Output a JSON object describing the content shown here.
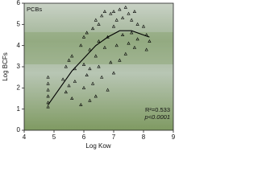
{
  "chart_data": {
    "type": "scatter",
    "xlabel": "Log Kow",
    "ylabel": "Log BCFs",
    "xlim": [
      4,
      9
    ],
    "xticks": [
      4,
      5,
      6,
      7,
      8,
      9
    ],
    "ylim": [
      0,
      6
    ],
    "yticks": [
      0,
      1,
      2,
      3,
      4,
      5,
      6
    ],
    "annotations": [
      "PCBs",
      "R²=0.533",
      "p<0.0001"
    ],
    "color": "#000000",
    "points": {
      "x": [
        4.8,
        4.8,
        4.8,
        4.8,
        4.8,
        4.8,
        5.3,
        5.4,
        5.4,
        5.5,
        5.5,
        5.6,
        5.6,
        5.7,
        5.7,
        5.9,
        5.9,
        6.0,
        6.0,
        6.0,
        6.1,
        6.1,
        6.2,
        6.2,
        6.2,
        6.3,
        6.3,
        6.4,
        6.4,
        6.4,
        6.5,
        6.5,
        6.5,
        6.6,
        6.6,
        6.7,
        6.7,
        6.8,
        6.8,
        6.9,
        6.9,
        7.0,
        7.0,
        7.0,
        7.1,
        7.1,
        7.2,
        7.2,
        7.3,
        7.3,
        7.4,
        7.4,
        7.5,
        7.5,
        7.6,
        7.6,
        7.7,
        7.7,
        7.8,
        7.8,
        8.0,
        8.1,
        8.1,
        8.2
      ],
      "values": [
        1.3,
        1.6,
        1.9,
        2.2,
        2.5,
        1.1,
        2.4,
        3.0,
        1.8,
        3.3,
        2.1,
        3.5,
        1.5,
        2.9,
        2.3,
        4.0,
        1.2,
        4.4,
        3.1,
        2.0,
        4.6,
        2.6,
        3.8,
        1.4,
        2.9,
        4.8,
        2.2,
        5.2,
        3.5,
        1.6,
        5.0,
        3.0,
        4.2,
        5.4,
        2.5,
        5.6,
        3.9,
        4.4,
        1.9,
        5.5,
        3.2,
        5.6,
        4.9,
        2.7,
        5.2,
        4.0,
        5.7,
        3.3,
        5.3,
        4.5,
        5.8,
        3.6,
        5.5,
        4.1,
        5.2,
        4.6,
        5.6,
        3.9,
        5.0,
        4.3,
        4.9,
        4.5,
        3.8,
        4.2
      ]
    },
    "fit": {
      "x": [
        4.8,
        5.2,
        5.6,
        6.0,
        6.4,
        6.8,
        7.2,
        7.6,
        8.0,
        8.2
      ],
      "values": [
        1.2,
        2.0,
        2.8,
        3.4,
        4.0,
        4.4,
        4.7,
        4.7,
        4.5,
        4.4
      ]
    }
  }
}
